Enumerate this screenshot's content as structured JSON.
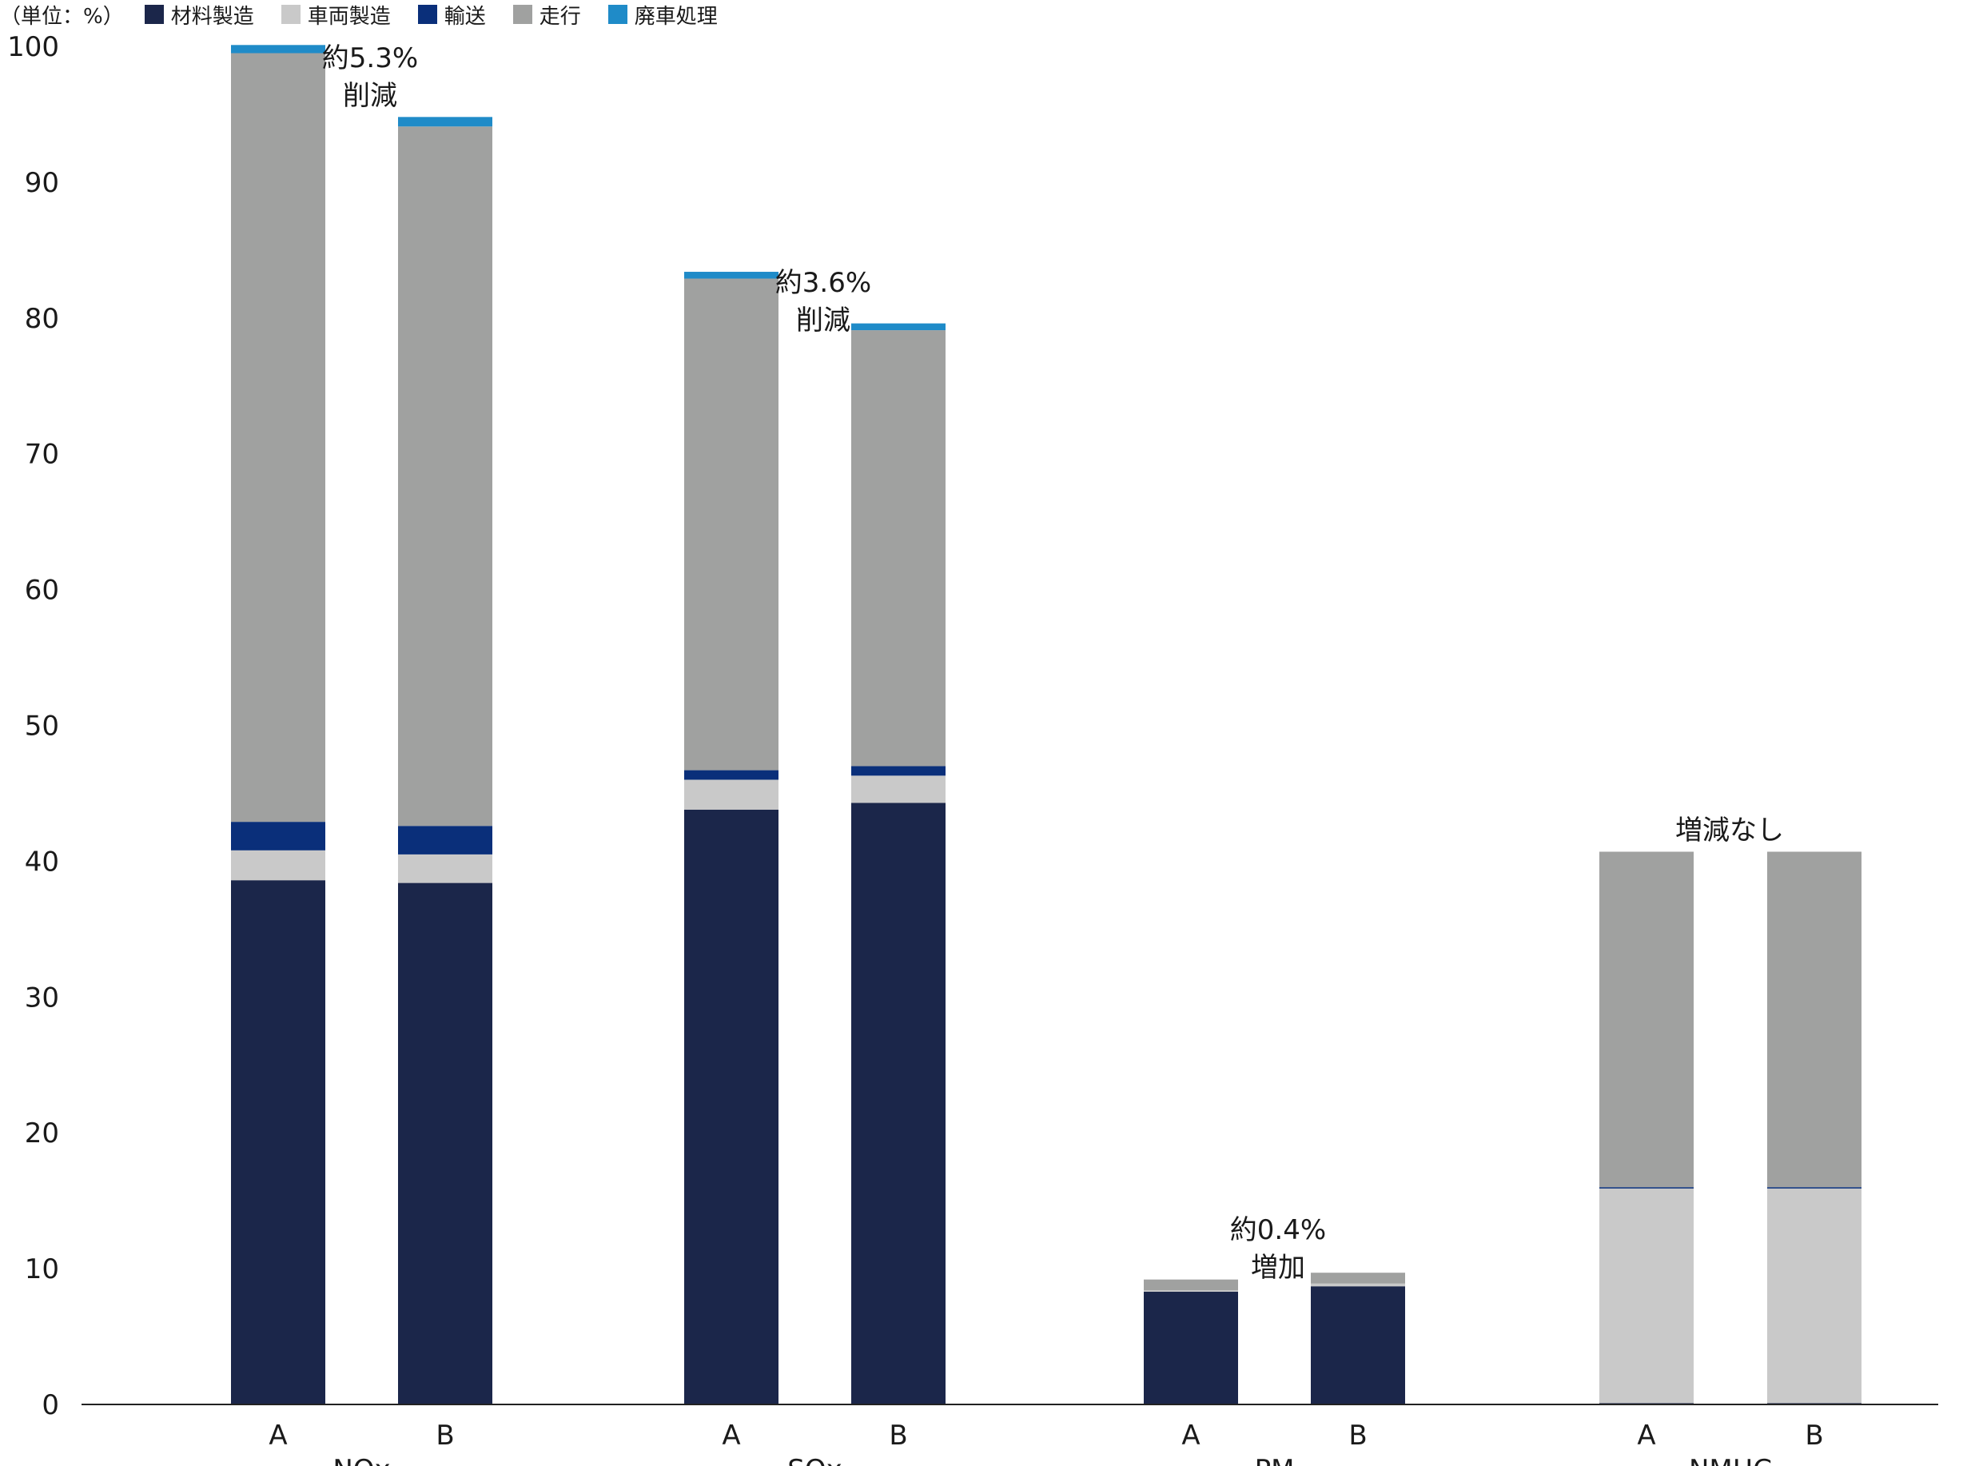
{
  "chart_data": {
    "type": "bar",
    "stacked": true,
    "unit_label": "（単位：%）",
    "ylim": [
      0,
      100
    ],
    "yticks": [
      0,
      10,
      20,
      30,
      40,
      50,
      60,
      70,
      80,
      90,
      100
    ],
    "groups": [
      {
        "name": "NOx",
        "bars": [
          {
            "label": "A",
            "values": [
              38.6,
              2.2,
              2.1,
              56.6,
              0.6
            ]
          },
          {
            "label": "B",
            "values": [
              38.4,
              2.1,
              2.1,
              51.5,
              0.7
            ]
          }
        ],
        "annotation": [
          "約5.3%",
          "削減"
        ]
      },
      {
        "name": "SOx",
        "bars": [
          {
            "label": "A",
            "values": [
              43.8,
              2.2,
              0.7,
              36.2,
              0.5
            ]
          },
          {
            "label": "B",
            "values": [
              44.3,
              2.0,
              0.7,
              32.1,
              0.5
            ]
          }
        ],
        "annotation": [
          "約3.6%",
          "削減"
        ]
      },
      {
        "name": "PM",
        "bars": [
          {
            "label": "A",
            "values": [
              8.3,
              0.1,
              0.0,
              0.8,
              0.0
            ]
          },
          {
            "label": "B",
            "values": [
              8.7,
              0.2,
              0.0,
              0.8,
              0.0
            ]
          }
        ],
        "annotation": [
          "約0.4%",
          "増加"
        ]
      },
      {
        "name": "NMHC",
        "bars": [
          {
            "label": "A",
            "values": [
              0.1,
              15.8,
              0.1,
              24.7,
              0.0
            ]
          },
          {
            "label": "B",
            "values": [
              0.1,
              15.8,
              0.1,
              24.7,
              0.0
            ]
          }
        ],
        "annotation": [
          "増減なし"
        ]
      }
    ],
    "series": [
      {
        "name": "材料製造",
        "color": "#1b264a"
      },
      {
        "name": "車両製造",
        "color": "#c9c9c9"
      },
      {
        "name": "輸送",
        "color": "#0a2f7a"
      },
      {
        "name": "走行",
        "color": "#a0a1a0"
      },
      {
        "name": "廃車処理",
        "color": "#1f8bc8"
      }
    ],
    "grid": false,
    "legend_position": "top-left"
  }
}
